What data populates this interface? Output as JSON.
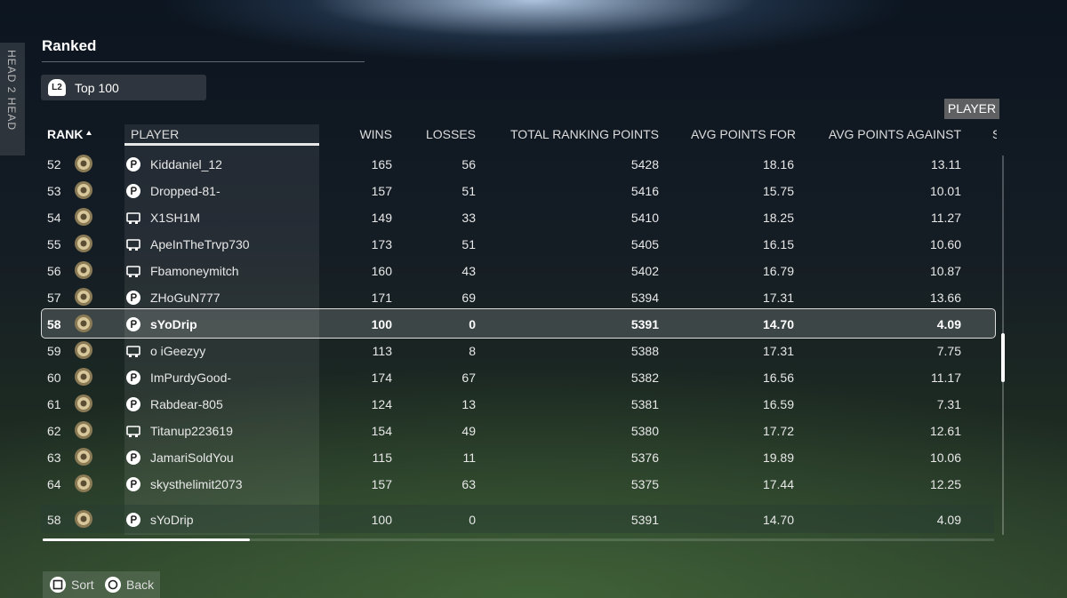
{
  "side_tab": "HEAD 2 HEAD",
  "header": {
    "title": "Ranked",
    "filter_button": "L2",
    "filter": "Top 100",
    "tooltip": "PLAYER"
  },
  "table": {
    "columns": [
      "RANK",
      "PLAYER",
      "WINS",
      "LOSSES",
      "TOTAL RANKING POINTS",
      "AVG POINTS FOR",
      "AVG POINTS AGAINST",
      "S"
    ],
    "rows": [
      {
        "rank": 52,
        "player": "Kiddaniel_12",
        "wins": 165,
        "losses": 56,
        "total": 5428,
        "avg_for": "18.16",
        "avg_against": "13.11"
      },
      {
        "rank": 53,
        "player": "Dropped-81-",
        "wins": 157,
        "losses": 51,
        "total": 5416,
        "avg_for": "15.75",
        "avg_against": "10.01"
      },
      {
        "rank": 54,
        "player": "X1SH1M",
        "wins": 149,
        "losses": 33,
        "total": 5410,
        "avg_for": "18.25",
        "avg_against": "11.27"
      },
      {
        "rank": 55,
        "player": "ApeInTheTrvp730",
        "wins": 173,
        "losses": 51,
        "total": 5405,
        "avg_for": "16.15",
        "avg_against": "10.60"
      },
      {
        "rank": 56,
        "player": "Fbamoneymitch",
        "wins": 160,
        "losses": 43,
        "total": 5402,
        "avg_for": "16.79",
        "avg_against": "10.87"
      },
      {
        "rank": 57,
        "player": "ZHoGuN777",
        "wins": 171,
        "losses": 69,
        "total": 5394,
        "avg_for": "17.31",
        "avg_against": "13.66"
      },
      {
        "rank": 58,
        "player": "sYoDrip",
        "wins": 100,
        "losses": 0,
        "total": 5391,
        "avg_for": "14.70",
        "avg_against": "4.09"
      },
      {
        "rank": 59,
        "player": "o iGeezyy",
        "wins": 113,
        "losses": 8,
        "total": 5388,
        "avg_for": "17.31",
        "avg_against": "7.75"
      },
      {
        "rank": 60,
        "player": "ImPurdyGood-",
        "wins": 174,
        "losses": 67,
        "total": 5382,
        "avg_for": "16.56",
        "avg_against": "11.17"
      },
      {
        "rank": 61,
        "player": "Rabdear-805",
        "wins": 124,
        "losses": 13,
        "total": 5381,
        "avg_for": "16.59",
        "avg_against": "7.31"
      },
      {
        "rank": 62,
        "player": "Titanup223619",
        "wins": 154,
        "losses": 49,
        "total": 5380,
        "avg_for": "17.72",
        "avg_against": "12.61"
      },
      {
        "rank": 63,
        "player": "JamariSoldYou",
        "wins": 115,
        "losses": 11,
        "total": 5376,
        "avg_for": "19.89",
        "avg_against": "10.06"
      },
      {
        "rank": 64,
        "player": "skysthelimit2073",
        "wins": 157,
        "losses": 63,
        "total": 5375,
        "avg_for": "17.44",
        "avg_against": "12.25"
      }
    ],
    "my_row": {
      "rank": 58,
      "player": "sYoDrip",
      "wins": 100,
      "losses": 0,
      "total": 5391,
      "avg_for": "14.70",
      "avg_against": "4.09"
    }
  },
  "footer": {
    "buttons": [
      "Sort",
      "Back"
    ]
  }
}
